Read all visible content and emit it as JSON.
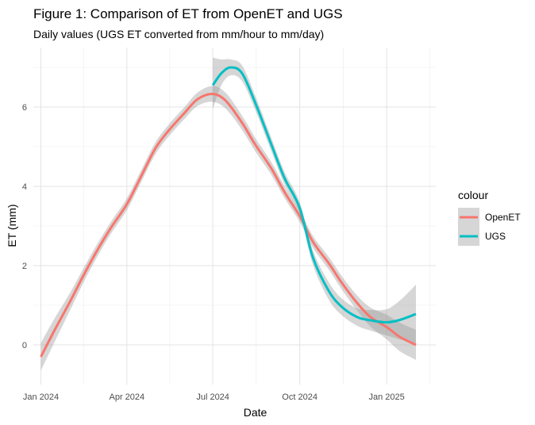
{
  "chart_data": {
    "type": "line",
    "title": "Figure 1: Comparison of ET from OpenET and UGS",
    "subtitle": "Daily values (UGS ET converted from mm/hour to mm/day)",
    "xlabel": "Date",
    "ylabel": "ET (mm)",
    "x_ticks": [
      {
        "label": "Jan 2024",
        "date": "2024-01-01"
      },
      {
        "label": "Apr 2024",
        "date": "2024-04-01"
      },
      {
        "label": "Jul 2024",
        "date": "2024-07-01"
      },
      {
        "label": "Oct 2024",
        "date": "2024-10-01"
      },
      {
        "label": "Jan 2025",
        "date": "2025-01-01"
      }
    ],
    "y_ticks": [
      0,
      2,
      4,
      6
    ],
    "xlim": [
      "2023-12-24",
      "2025-02-22"
    ],
    "ylim": [
      -1.0,
      7.5
    ],
    "grid": true,
    "legend": {
      "title": "colour",
      "position": "right"
    },
    "series": [
      {
        "name": "OpenET",
        "color": "#F8766D",
        "points": [
          {
            "x": "2024-01-01",
            "y": -0.3,
            "lo": -0.65,
            "hi": 0.05
          },
          {
            "x": "2024-01-15",
            "y": 0.35,
            "lo": 0.05,
            "hi": 0.65
          },
          {
            "x": "2024-02-01",
            "y": 1.1,
            "lo": 0.88,
            "hi": 1.32
          },
          {
            "x": "2024-02-15",
            "y": 1.75,
            "lo": 1.57,
            "hi": 1.93
          },
          {
            "x": "2024-03-01",
            "y": 2.4,
            "lo": 2.24,
            "hi": 2.56
          },
          {
            "x": "2024-03-15",
            "y": 2.95,
            "lo": 2.8,
            "hi": 3.1
          },
          {
            "x": "2024-04-01",
            "y": 3.55,
            "lo": 3.4,
            "hi": 3.7
          },
          {
            "x": "2024-04-15",
            "y": 4.2,
            "lo": 4.05,
            "hi": 4.35
          },
          {
            "x": "2024-05-01",
            "y": 4.95,
            "lo": 4.8,
            "hi": 5.1
          },
          {
            "x": "2024-05-15",
            "y": 5.4,
            "lo": 5.25,
            "hi": 5.55
          },
          {
            "x": "2024-06-01",
            "y": 5.85,
            "lo": 5.7,
            "hi": 6.0
          },
          {
            "x": "2024-06-15",
            "y": 6.2,
            "lo": 6.03,
            "hi": 6.37
          },
          {
            "x": "2024-07-01",
            "y": 6.33,
            "lo": 6.13,
            "hi": 6.53
          },
          {
            "x": "2024-07-15",
            "y": 6.15,
            "lo": 5.95,
            "hi": 6.35
          },
          {
            "x": "2024-08-01",
            "y": 5.6,
            "lo": 5.42,
            "hi": 5.78
          },
          {
            "x": "2024-08-15",
            "y": 5.05,
            "lo": 4.88,
            "hi": 5.22
          },
          {
            "x": "2024-09-01",
            "y": 4.45,
            "lo": 4.29,
            "hi": 4.61
          },
          {
            "x": "2024-09-15",
            "y": 3.85,
            "lo": 3.7,
            "hi": 4.0
          },
          {
            "x": "2024-10-01",
            "y": 3.25,
            "lo": 3.1,
            "hi": 3.4
          },
          {
            "x": "2024-10-15",
            "y": 2.6,
            "lo": 2.45,
            "hi": 2.75
          },
          {
            "x": "2024-11-01",
            "y": 2.05,
            "lo": 1.89,
            "hi": 2.21
          },
          {
            "x": "2024-11-15",
            "y": 1.55,
            "lo": 1.38,
            "hi": 1.72
          },
          {
            "x": "2024-12-01",
            "y": 1.05,
            "lo": 0.86,
            "hi": 1.24
          },
          {
            "x": "2024-12-15",
            "y": 0.7,
            "lo": 0.46,
            "hi": 0.94
          },
          {
            "x": "2025-01-01",
            "y": 0.45,
            "lo": 0.14,
            "hi": 0.76
          },
          {
            "x": "2025-01-15",
            "y": 0.2,
            "lo": -0.16,
            "hi": 0.56
          },
          {
            "x": "2025-02-01",
            "y": 0.0,
            "lo": -0.38,
            "hi": 0.38
          }
        ]
      },
      {
        "name": "UGS",
        "color": "#00BFC4",
        "points": [
          {
            "x": "2024-07-01",
            "y": 6.55,
            "lo": 5.95,
            "hi": 7.25
          },
          {
            "x": "2024-07-10",
            "y": 6.85,
            "lo": 6.55,
            "hi": 7.2
          },
          {
            "x": "2024-07-20",
            "y": 7.0,
            "lo": 6.8,
            "hi": 7.2
          },
          {
            "x": "2024-08-01",
            "y": 6.85,
            "lo": 6.65,
            "hi": 7.05
          },
          {
            "x": "2024-08-15",
            "y": 6.1,
            "lo": 5.92,
            "hi": 6.28
          },
          {
            "x": "2024-09-01",
            "y": 5.05,
            "lo": 4.88,
            "hi": 5.22
          },
          {
            "x": "2024-09-15",
            "y": 4.2,
            "lo": 4.04,
            "hi": 4.36
          },
          {
            "x": "2024-10-01",
            "y": 3.45,
            "lo": 3.3,
            "hi": 3.6
          },
          {
            "x": "2024-10-15",
            "y": 2.2,
            "lo": 2.02,
            "hi": 2.38
          },
          {
            "x": "2024-11-01",
            "y": 1.35,
            "lo": 1.13,
            "hi": 1.57
          },
          {
            "x": "2024-11-15",
            "y": 0.95,
            "lo": 0.74,
            "hi": 1.16
          },
          {
            "x": "2024-12-01",
            "y": 0.7,
            "lo": 0.48,
            "hi": 0.92
          },
          {
            "x": "2024-12-15",
            "y": 0.62,
            "lo": 0.36,
            "hi": 0.88
          },
          {
            "x": "2025-01-01",
            "y": 0.57,
            "lo": 0.24,
            "hi": 0.9
          },
          {
            "x": "2025-01-15",
            "y": 0.63,
            "lo": 0.14,
            "hi": 1.12
          },
          {
            "x": "2025-02-01",
            "y": 0.78,
            "lo": 0.04,
            "hi": 1.52
          }
        ]
      }
    ]
  }
}
